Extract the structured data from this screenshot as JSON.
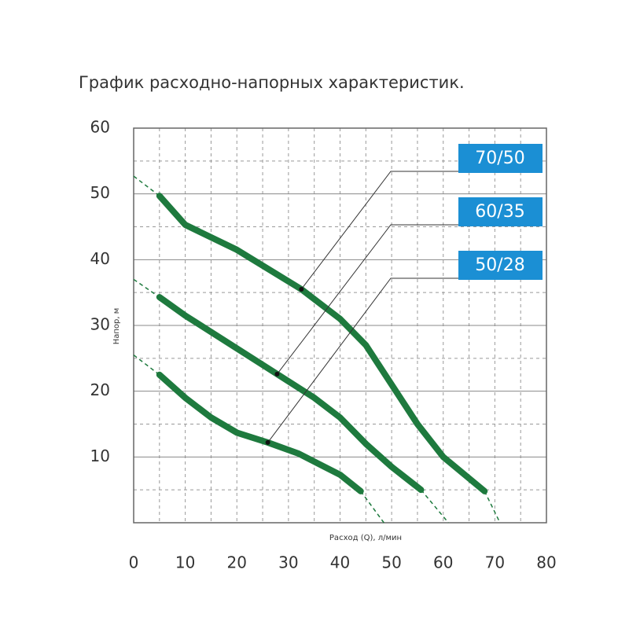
{
  "chart_data": {
    "type": "line",
    "title": "График расходно-напорных характеристик.",
    "x_label": "Расход (Q), л/мин",
    "y_label": "Напор, м",
    "xlim": [
      0,
      80
    ],
    "xticks": [
      0,
      10,
      20,
      30,
      40,
      50,
      60,
      70,
      80
    ],
    "ylim": [
      0,
      60
    ],
    "yticks": [
      10,
      20,
      30,
      40,
      50,
      60
    ],
    "grid": true,
    "series": [
      {
        "name": "70/50",
        "color": "#1e7a3e",
        "x": [
          5,
          10,
          20,
          32.5,
          40,
          45,
          50,
          55,
          60,
          68
        ],
        "values": [
          49.7,
          45.3,
          41.5,
          35.5,
          31,
          27,
          21,
          15,
          10,
          4.8
        ],
        "extrapolation": [
          {
            "x": [
              0,
              5
            ],
            "values": [
              52.7,
              49.7
            ]
          },
          {
            "x": [
              68,
              71
            ],
            "values": [
              4.8,
              0
            ]
          }
        ]
      },
      {
        "name": "60/35",
        "color": "#1e7a3e",
        "x": [
          5,
          10,
          20,
          27.8,
          35,
          40,
          45,
          50,
          55.7
        ],
        "values": [
          34.3,
          31.5,
          26.5,
          22.6,
          19,
          16,
          12,
          8.5,
          5
        ],
        "extrapolation": [
          {
            "x": [
              0,
              5
            ],
            "values": [
              37,
              34.3
            ]
          },
          {
            "x": [
              55.7,
              61
            ],
            "values": [
              5,
              0
            ]
          }
        ]
      },
      {
        "name": "50/28",
        "color": "#1e7a3e",
        "x": [
          5,
          10,
          15,
          20,
          26,
          32,
          37,
          40,
          44
        ],
        "values": [
          22.5,
          19,
          16,
          13.7,
          12.2,
          10.5,
          8.5,
          7.3,
          4.8
        ],
        "extrapolation": [
          {
            "x": [
              0,
              5
            ],
            "values": [
              25.5,
              22.5
            ]
          },
          {
            "x": [
              44,
              48.5
            ],
            "values": [
              4.8,
              0
            ]
          }
        ]
      }
    ]
  }
}
